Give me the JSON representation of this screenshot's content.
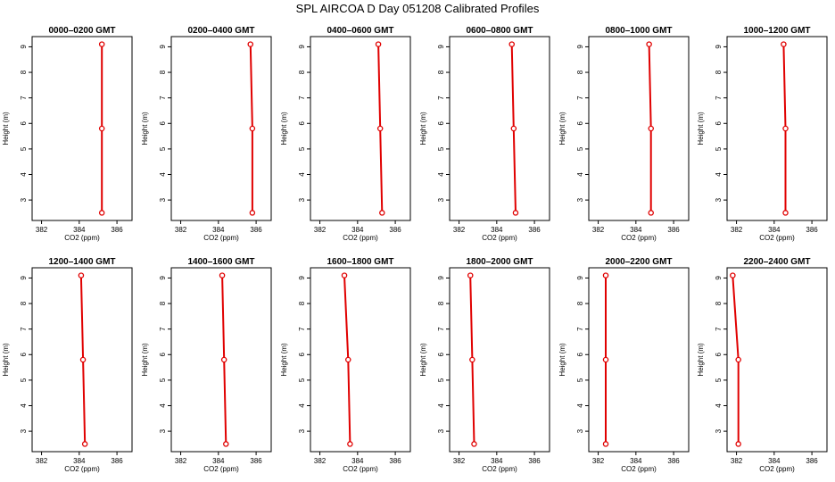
{
  "figure": {
    "title": "SPL AIRCOA D  Day 051208  Calibrated Profiles"
  },
  "colors": {
    "profile": "#e00000",
    "axis": "#000000"
  },
  "chart_data": [
    {
      "type": "line",
      "title": "0000–0200 GMT",
      "xlabel": "CO2 (ppm)",
      "ylabel": "Height (m)",
      "xlim": [
        381.5,
        386.8
      ],
      "ylim": [
        2.2,
        9.4
      ],
      "xticks": [
        382,
        384,
        386
      ],
      "yticks": [
        3,
        4,
        5,
        6,
        7,
        8,
        9
      ],
      "grid": false,
      "series": [
        {
          "x": [
            385.2,
            385.2,
            385.2
          ],
          "y": [
            2.5,
            5.8,
            9.1
          ]
        }
      ]
    },
    {
      "type": "line",
      "title": "0200–0400 GMT",
      "xlabel": "CO2 (ppm)",
      "ylabel": "Height (m)",
      "xlim": [
        381.5,
        386.8
      ],
      "ylim": [
        2.2,
        9.4
      ],
      "xticks": [
        382,
        384,
        386
      ],
      "yticks": [
        3,
        4,
        5,
        6,
        7,
        8,
        9
      ],
      "grid": false,
      "series": [
        {
          "x": [
            385.8,
            385.8,
            385.7
          ],
          "y": [
            2.5,
            5.8,
            9.1
          ]
        }
      ]
    },
    {
      "type": "line",
      "title": "0400–0600 GMT",
      "xlabel": "CO2 (ppm)",
      "ylabel": "Height (m)",
      "xlim": [
        381.5,
        386.8
      ],
      "ylim": [
        2.2,
        9.4
      ],
      "xticks": [
        382,
        384,
        386
      ],
      "yticks": [
        3,
        4,
        5,
        6,
        7,
        8,
        9
      ],
      "grid": false,
      "series": [
        {
          "x": [
            385.3,
            385.2,
            385.1
          ],
          "y": [
            2.5,
            5.8,
            9.1
          ]
        }
      ]
    },
    {
      "type": "line",
      "title": "0600–0800 GMT",
      "xlabel": "CO2 (ppm)",
      "ylabel": "Height (m)",
      "xlim": [
        381.5,
        386.8
      ],
      "ylim": [
        2.2,
        9.4
      ],
      "xticks": [
        382,
        384,
        386
      ],
      "yticks": [
        3,
        4,
        5,
        6,
        7,
        8,
        9
      ],
      "grid": false,
      "series": [
        {
          "x": [
            385.0,
            384.9,
            384.8
          ],
          "y": [
            2.5,
            5.8,
            9.1
          ]
        }
      ]
    },
    {
      "type": "line",
      "title": "0800–1000 GMT",
      "xlabel": "CO2 (ppm)",
      "ylabel": "Height (m)",
      "xlim": [
        381.5,
        386.8
      ],
      "ylim": [
        2.2,
        9.4
      ],
      "xticks": [
        382,
        384,
        386
      ],
      "yticks": [
        3,
        4,
        5,
        6,
        7,
        8,
        9
      ],
      "grid": false,
      "series": [
        {
          "x": [
            384.8,
            384.8,
            384.7
          ],
          "y": [
            2.5,
            5.8,
            9.1
          ]
        }
      ]
    },
    {
      "type": "line",
      "title": "1000–1200 GMT",
      "xlabel": "CO2 (ppm)",
      "ylabel": "Height (m)",
      "xlim": [
        381.5,
        386.8
      ],
      "ylim": [
        2.2,
        9.4
      ],
      "xticks": [
        382,
        384,
        386
      ],
      "yticks": [
        3,
        4,
        5,
        6,
        7,
        8,
        9
      ],
      "grid": false,
      "series": [
        {
          "x": [
            384.6,
            384.6,
            384.5
          ],
          "y": [
            2.5,
            5.8,
            9.1
          ]
        }
      ]
    },
    {
      "type": "line",
      "title": "1200–1400 GMT",
      "xlabel": "CO2 (ppm)",
      "ylabel": "Height (m)",
      "xlim": [
        381.5,
        386.8
      ],
      "ylim": [
        2.2,
        9.4
      ],
      "xticks": [
        382,
        384,
        386
      ],
      "yticks": [
        3,
        4,
        5,
        6,
        7,
        8,
        9
      ],
      "grid": false,
      "series": [
        {
          "x": [
            384.3,
            384.2,
            384.1
          ],
          "y": [
            2.5,
            5.8,
            9.1
          ]
        }
      ]
    },
    {
      "type": "line",
      "title": "1400–1600 GMT",
      "xlabel": "CO2 (ppm)",
      "ylabel": "Height (m)",
      "xlim": [
        381.5,
        386.8
      ],
      "ylim": [
        2.2,
        9.4
      ],
      "xticks": [
        382,
        384,
        386
      ],
      "yticks": [
        3,
        4,
        5,
        6,
        7,
        8,
        9
      ],
      "grid": false,
      "series": [
        {
          "x": [
            384.4,
            384.3,
            384.2
          ],
          "y": [
            2.5,
            5.8,
            9.1
          ]
        }
      ]
    },
    {
      "type": "line",
      "title": "1600–1800 GMT",
      "xlabel": "CO2 (ppm)",
      "ylabel": "Height (m)",
      "xlim": [
        381.5,
        386.8
      ],
      "ylim": [
        2.2,
        9.4
      ],
      "xticks": [
        382,
        384,
        386
      ],
      "yticks": [
        3,
        4,
        5,
        6,
        7,
        8,
        9
      ],
      "grid": false,
      "series": [
        {
          "x": [
            383.6,
            383.5,
            383.3
          ],
          "y": [
            2.5,
            5.8,
            9.1
          ]
        }
      ]
    },
    {
      "type": "line",
      "title": "1800–2000 GMT",
      "xlabel": "CO2 (ppm)",
      "ylabel": "Height (m)",
      "xlim": [
        381.5,
        386.8
      ],
      "ylim": [
        2.2,
        9.4
      ],
      "xticks": [
        382,
        384,
        386
      ],
      "yticks": [
        3,
        4,
        5,
        6,
        7,
        8,
        9
      ],
      "grid": false,
      "series": [
        {
          "x": [
            382.8,
            382.7,
            382.6
          ],
          "y": [
            2.5,
            5.8,
            9.1
          ]
        }
      ]
    },
    {
      "type": "line",
      "title": "2000–2200 GMT",
      "xlabel": "CO2 (ppm)",
      "ylabel": "Height (m)",
      "xlim": [
        381.5,
        386.8
      ],
      "ylim": [
        2.2,
        9.4
      ],
      "xticks": [
        382,
        384,
        386
      ],
      "yticks": [
        3,
        4,
        5,
        6,
        7,
        8,
        9
      ],
      "grid": false,
      "series": [
        {
          "x": [
            382.4,
            382.4,
            382.4
          ],
          "y": [
            2.5,
            5.8,
            9.1
          ]
        }
      ]
    },
    {
      "type": "line",
      "title": "2200–2400 GMT",
      "xlabel": "CO2 (ppm)",
      "ylabel": "Height (m)",
      "xlim": [
        381.5,
        386.8
      ],
      "ylim": [
        2.2,
        9.4
      ],
      "xticks": [
        382,
        384,
        386
      ],
      "yticks": [
        3,
        4,
        5,
        6,
        7,
        8,
        9
      ],
      "grid": false,
      "series": [
        {
          "x": [
            382.1,
            382.1,
            381.8
          ],
          "y": [
            2.5,
            5.8,
            9.1
          ]
        }
      ]
    }
  ]
}
